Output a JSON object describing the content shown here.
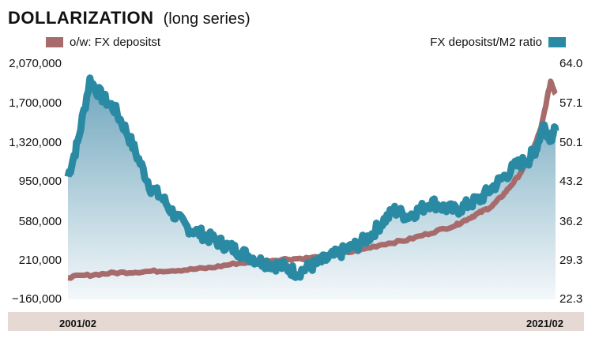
{
  "title": {
    "main": "DOLLARIZATION",
    "sub": "(long series)"
  },
  "legend": {
    "left_label": "o/w: FX depositst",
    "right_label": "FX depositst/M2 ratio"
  },
  "colors": {
    "deposits": "#a86b6c",
    "ratio": "#2b8aa3",
    "band": "#e6d9d4"
  },
  "x_axis": {
    "start_label": "2001/02",
    "end_label": "2021/02"
  },
  "chart_data": {
    "type": "area",
    "title": "DOLLARIZATION (long series)",
    "x_range": [
      "2001/02",
      "2021/02"
    ],
    "y_left": {
      "ticks": [
        "2,070,000",
        "1,700,000",
        "1,320,000",
        "950,000",
        "580,000",
        "210,000",
        "−160,000"
      ],
      "range": [
        -160000,
        2070000
      ]
    },
    "y_right": {
      "ticks": [
        "64.0",
        "57.1",
        "50.1",
        "43.2",
        "36.2",
        "29.3",
        "22.3"
      ],
      "range": [
        22.3,
        64.0
      ]
    },
    "series": [
      {
        "name": "o/w: FX depositst",
        "axis": "left",
        "style": "thick-line",
        "x": [
          2001.1,
          2002.0,
          2003.0,
          2004.0,
          2005.0,
          2006.0,
          2007.0,
          2008.0,
          2009.0,
          2010.0,
          2011.0,
          2012.0,
          2013.0,
          2014.0,
          2015.0,
          2016.0,
          2017.0,
          2017.5,
          2018.0,
          2018.5,
          2019.0,
          2019.5,
          2020.0,
          2020.5,
          2020.9,
          2021.1
        ],
        "y": [
          50000,
          70000,
          90000,
          100000,
          110000,
          120000,
          140000,
          180000,
          200000,
          220000,
          230000,
          260000,
          300000,
          360000,
          400000,
          470000,
          540000,
          600000,
          660000,
          720000,
          840000,
          980000,
          1150000,
          1450000,
          1900000,
          1780000
        ]
      },
      {
        "name": "FX depositst/M2 ratio",
        "axis": "right",
        "style": "area",
        "x": [
          2001.1,
          2001.5,
          2002.0,
          2002.5,
          2003.0,
          2003.5,
          2004.0,
          2004.5,
          2005.0,
          2005.5,
          2006.0,
          2006.5,
          2007.0,
          2007.5,
          2008.0,
          2008.5,
          2009.0,
          2009.5,
          2010.0,
          2010.5,
          2011.0,
          2011.5,
          2012.0,
          2012.5,
          2013.0,
          2013.5,
          2014.0,
          2014.5,
          2015.0,
          2015.5,
          2016.0,
          2016.5,
          2017.0,
          2017.5,
          2018.0,
          2018.5,
          2019.0,
          2019.5,
          2020.0,
          2020.3,
          2020.6,
          2020.9,
          2021.1
        ],
        "y": [
          44,
          50,
          61,
          58,
          56,
          52,
          47,
          42,
          40,
          37,
          35,
          34,
          33,
          32,
          31,
          30,
          29,
          28.5,
          28,
          27,
          28,
          29,
          30,
          31,
          32,
          33.5,
          36,
          38,
          37,
          38,
          39.5,
          38.5,
          38,
          39,
          40,
          42,
          44,
          46,
          47,
          49,
          53,
          51,
          52
        ]
      }
    ]
  }
}
